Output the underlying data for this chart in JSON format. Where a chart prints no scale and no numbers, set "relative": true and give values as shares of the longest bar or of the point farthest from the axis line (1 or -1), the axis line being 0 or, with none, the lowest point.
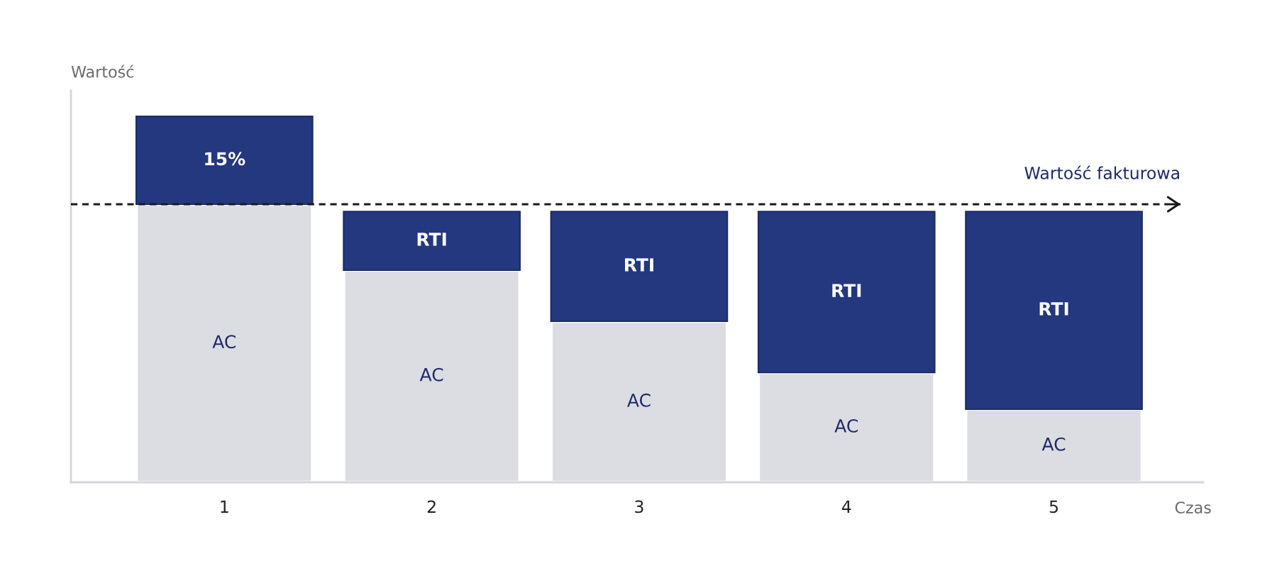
{
  "chart_data": {
    "type": "bar",
    "stacked": true,
    "relative": true,
    "categories": [
      "1",
      "2",
      "3",
      "4",
      "5"
    ],
    "xlabel": "Czas",
    "ylabel": "Wartość",
    "tick_labels": "x",
    "series": [
      {
        "name": "AC",
        "color": "#dcdde2",
        "values": [
          0.76,
          0.58,
          0.44,
          0.3,
          0.2
        ]
      },
      {
        "name": "RTI",
        "color": "#24387f",
        "values": [
          null,
          0.16,
          0.3,
          0.44,
          0.54
        ]
      },
      {
        "name": "15%",
        "color": "#24387f",
        "values": [
          0.24,
          null,
          null,
          null,
          null
        ]
      }
    ],
    "ref_lines": [
      {
        "axis": "y",
        "value": 0.76,
        "label": "Wartość fakturowa",
        "line_style": "dashed",
        "color": "#1a1a1a"
      }
    ]
  }
}
